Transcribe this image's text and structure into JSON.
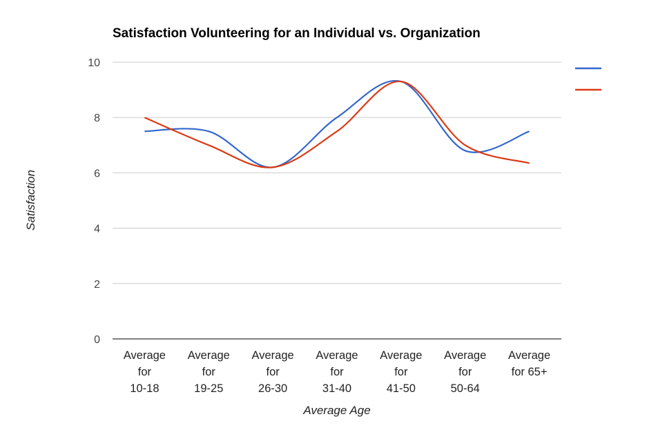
{
  "chart_data": {
    "type": "line",
    "title": "Satisfaction Volunteering for an Individual vs. Organization",
    "xlabel": "Average Age",
    "ylabel": "Satisfaction",
    "categories": [
      [
        "Average",
        "for",
        "10-18"
      ],
      [
        "Average",
        "for",
        "19-25"
      ],
      [
        "Average",
        "for",
        "26-30"
      ],
      [
        "Average",
        "for",
        "31-40"
      ],
      [
        "Average",
        "for",
        "41-50"
      ],
      [
        "Average",
        "for",
        "50-64"
      ],
      [
        "Average",
        "for 65+"
      ]
    ],
    "ylim": [
      0,
      10
    ],
    "yticks": [
      0,
      2,
      4,
      6,
      8,
      10
    ],
    "grid": true,
    "legend_position": "right",
    "smooth": true,
    "series": [
      {
        "color": "#3366cc",
        "values": [
          7.5,
          7.5,
          6.2,
          8.0,
          9.3,
          6.8,
          7.5
        ]
      },
      {
        "color": "#dc3912",
        "values": [
          8.0,
          7.0,
          6.2,
          7.5,
          9.3,
          7.0,
          6.35
        ]
      }
    ]
  }
}
